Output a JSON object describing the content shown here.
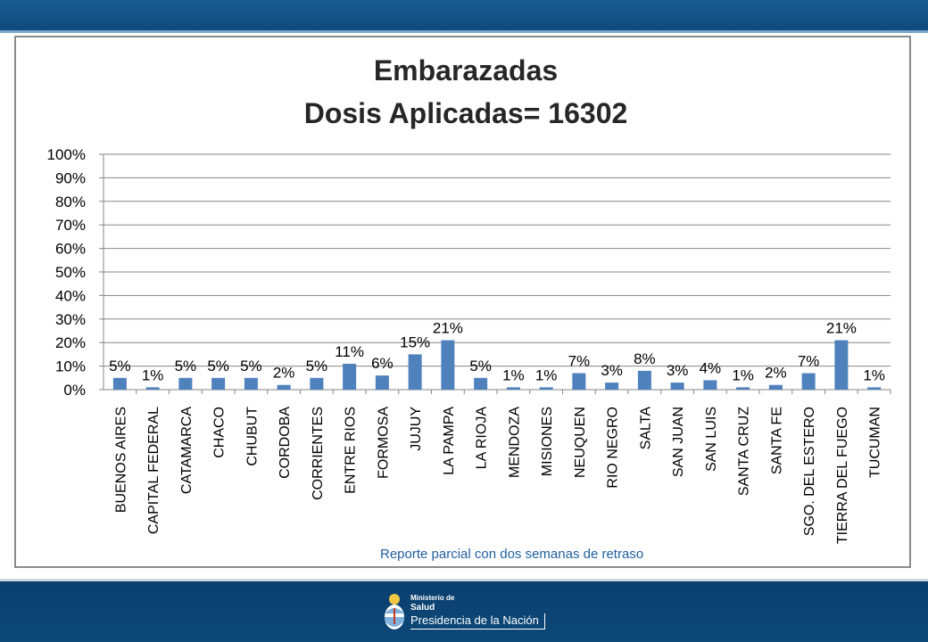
{
  "chart_data": {
    "type": "bar",
    "title": [
      "Embarazadas",
      "Dosis Aplicadas= 16302"
    ],
    "categories": [
      "BUENOS AIRES",
      "CAPITAL FEDERAL",
      "CATAMARCA",
      "CHACO",
      "CHUBUT",
      "CORDOBA",
      "CORRIENTES",
      "ENTRE RIOS",
      "FORMOSA",
      "JUJUY",
      "LA PAMPA",
      "LA RIOJA",
      "MENDOZA",
      "MISIONES",
      "NEUQUEN",
      "RIO NEGRO",
      "SALTA",
      "SAN JUAN",
      "SAN LUIS",
      "SANTA CRUZ",
      "SANTA FE",
      "SGO. DEL ESTERO",
      "TIERRA DEL FUEGO",
      "TUCUMAN"
    ],
    "values": [
      5,
      1,
      5,
      5,
      5,
      2,
      5,
      11,
      6,
      15,
      21,
      5,
      1,
      1,
      7,
      3,
      8,
      3,
      4,
      1,
      2,
      7,
      21,
      1
    ],
    "data_labels": [
      "5%",
      "1%",
      "5%",
      "5%",
      "5%",
      "2%",
      "5%",
      "11%",
      "6%",
      "15%",
      "21%",
      "5%",
      "1%",
      "1%",
      "7%",
      "3%",
      "8%",
      "3%",
      "4%",
      "1%",
      "2%",
      "7%",
      "21%",
      "1%"
    ],
    "yticks": [
      "0%",
      "10%",
      "20%",
      "30%",
      "40%",
      "50%",
      "60%",
      "70%",
      "80%",
      "90%",
      "100%"
    ],
    "ylim": [
      0,
      100
    ],
    "grid": true,
    "bar_color": "#4f81bd"
  },
  "note": "Reporte parcial con dos semanas de retraso",
  "logo": {
    "ministerio": "Ministerio de",
    "salud": "Salud",
    "presidencia": "Presidencia de la Nación"
  }
}
